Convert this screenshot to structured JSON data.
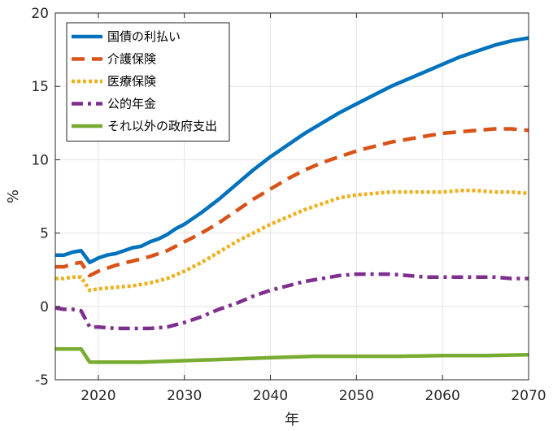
{
  "chart_data": {
    "type": "line",
    "title": "",
    "xlabel": "年",
    "ylabel": "%",
    "xlim": [
      2015,
      2070
    ],
    "ylim": [
      -5,
      20
    ],
    "xticks": [
      2020,
      2030,
      2040,
      2050,
      2060,
      2070
    ],
    "yticks": [
      -5,
      0,
      5,
      10,
      15,
      20
    ],
    "grid": true,
    "legend_position": "top-left",
    "series": [
      {
        "name": "国債の利払い",
        "color": "#0072BD",
        "style": "solid",
        "points": [
          [
            2015,
            3.5
          ],
          [
            2016,
            3.5
          ],
          [
            2017,
            3.7
          ],
          [
            2018,
            3.8
          ],
          [
            2019,
            3.0
          ],
          [
            2020,
            3.3
          ],
          [
            2021,
            3.5
          ],
          [
            2022,
            3.6
          ],
          [
            2023,
            3.8
          ],
          [
            2024,
            4.0
          ],
          [
            2025,
            4.1
          ],
          [
            2026,
            4.4
          ],
          [
            2027,
            4.6
          ],
          [
            2028,
            4.9
          ],
          [
            2029,
            5.3
          ],
          [
            2030,
            5.6
          ],
          [
            2032,
            6.4
          ],
          [
            2034,
            7.3
          ],
          [
            2036,
            8.3
          ],
          [
            2038,
            9.3
          ],
          [
            2040,
            10.2
          ],
          [
            2042,
            11.0
          ],
          [
            2044,
            11.8
          ],
          [
            2046,
            12.5
          ],
          [
            2048,
            13.2
          ],
          [
            2050,
            13.8
          ],
          [
            2052,
            14.4
          ],
          [
            2054,
            15.0
          ],
          [
            2056,
            15.5
          ],
          [
            2058,
            16.0
          ],
          [
            2060,
            16.5
          ],
          [
            2062,
            17.0
          ],
          [
            2064,
            17.4
          ],
          [
            2066,
            17.8
          ],
          [
            2068,
            18.1
          ],
          [
            2070,
            18.3
          ]
        ]
      },
      {
        "name": "介護保険",
        "color": "#D95319",
        "style": "dashed",
        "points": [
          [
            2015,
            2.7
          ],
          [
            2016,
            2.7
          ],
          [
            2017,
            2.9
          ],
          [
            2018,
            3.0
          ],
          [
            2019,
            2.1
          ],
          [
            2020,
            2.4
          ],
          [
            2022,
            2.8
          ],
          [
            2024,
            3.1
          ],
          [
            2026,
            3.4
          ],
          [
            2028,
            3.8
          ],
          [
            2030,
            4.4
          ],
          [
            2032,
            5.0
          ],
          [
            2034,
            5.7
          ],
          [
            2036,
            6.5
          ],
          [
            2038,
            7.3
          ],
          [
            2040,
            8.0
          ],
          [
            2042,
            8.7
          ],
          [
            2044,
            9.3
          ],
          [
            2046,
            9.8
          ],
          [
            2048,
            10.2
          ],
          [
            2050,
            10.6
          ],
          [
            2052,
            10.9
          ],
          [
            2054,
            11.2
          ],
          [
            2056,
            11.4
          ],
          [
            2058,
            11.6
          ],
          [
            2060,
            11.8
          ],
          [
            2062,
            11.9
          ],
          [
            2064,
            12.0
          ],
          [
            2066,
            12.1
          ],
          [
            2068,
            12.1
          ],
          [
            2070,
            12.0
          ]
        ]
      },
      {
        "name": "医療保険",
        "color": "#EDB120",
        "style": "dotted",
        "points": [
          [
            2015,
            1.9
          ],
          [
            2016,
            1.9
          ],
          [
            2017,
            2.0
          ],
          [
            2018,
            2.0
          ],
          [
            2019,
            1.1
          ],
          [
            2020,
            1.2
          ],
          [
            2022,
            1.3
          ],
          [
            2024,
            1.4
          ],
          [
            2026,
            1.6
          ],
          [
            2028,
            1.9
          ],
          [
            2030,
            2.4
          ],
          [
            2032,
            3.0
          ],
          [
            2034,
            3.7
          ],
          [
            2036,
            4.4
          ],
          [
            2038,
            5.0
          ],
          [
            2040,
            5.6
          ],
          [
            2042,
            6.1
          ],
          [
            2044,
            6.6
          ],
          [
            2046,
            7.0
          ],
          [
            2048,
            7.4
          ],
          [
            2050,
            7.6
          ],
          [
            2052,
            7.7
          ],
          [
            2054,
            7.8
          ],
          [
            2056,
            7.8
          ],
          [
            2058,
            7.8
          ],
          [
            2060,
            7.8
          ],
          [
            2062,
            7.9
          ],
          [
            2064,
            7.9
          ],
          [
            2066,
            7.8
          ],
          [
            2068,
            7.8
          ],
          [
            2070,
            7.7
          ]
        ]
      },
      {
        "name": "公的年金",
        "color": "#7E2F8E",
        "style": "dashdot",
        "points": [
          [
            2015,
            -0.1
          ],
          [
            2016,
            -0.2
          ],
          [
            2017,
            -0.2
          ],
          [
            2018,
            -0.3
          ],
          [
            2019,
            -1.4
          ],
          [
            2020,
            -1.4
          ],
          [
            2022,
            -1.5
          ],
          [
            2024,
            -1.5
          ],
          [
            2026,
            -1.5
          ],
          [
            2028,
            -1.4
          ],
          [
            2030,
            -1.1
          ],
          [
            2032,
            -0.7
          ],
          [
            2034,
            -0.2
          ],
          [
            2036,
            0.2
          ],
          [
            2038,
            0.7
          ],
          [
            2040,
            1.1
          ],
          [
            2042,
            1.4
          ],
          [
            2044,
            1.7
          ],
          [
            2046,
            1.9
          ],
          [
            2048,
            2.1
          ],
          [
            2050,
            2.2
          ],
          [
            2052,
            2.2
          ],
          [
            2054,
            2.2
          ],
          [
            2056,
            2.1
          ],
          [
            2058,
            2.0
          ],
          [
            2060,
            2.0
          ],
          [
            2062,
            2.0
          ],
          [
            2064,
            2.0
          ],
          [
            2066,
            2.0
          ],
          [
            2068,
            1.9
          ],
          [
            2070,
            1.9
          ]
        ]
      },
      {
        "name": "それ以外の政府支出",
        "color": "#77AC30",
        "style": "solid",
        "points": [
          [
            2015,
            -2.9
          ],
          [
            2016,
            -2.9
          ],
          [
            2017,
            -2.9
          ],
          [
            2018,
            -2.9
          ],
          [
            2019,
            -3.8
          ],
          [
            2020,
            -3.8
          ],
          [
            2025,
            -3.8
          ],
          [
            2030,
            -3.7
          ],
          [
            2035,
            -3.6
          ],
          [
            2040,
            -3.5
          ],
          [
            2045,
            -3.4
          ],
          [
            2050,
            -3.4
          ],
          [
            2055,
            -3.4
          ],
          [
            2060,
            -3.35
          ],
          [
            2065,
            -3.35
          ],
          [
            2070,
            -3.3
          ]
        ]
      }
    ]
  }
}
